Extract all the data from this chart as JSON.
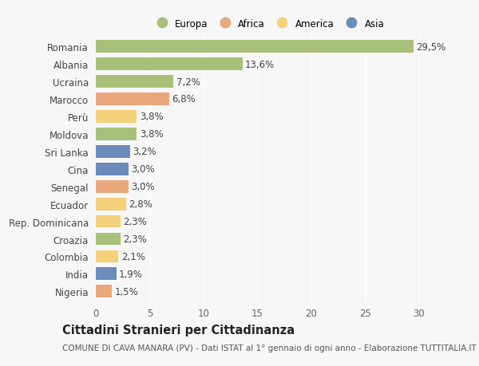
{
  "countries": [
    "Romania",
    "Albania",
    "Ucraina",
    "Marocco",
    "Perù",
    "Moldova",
    "Sri Lanka",
    "Cina",
    "Senegal",
    "Ecuador",
    "Rep. Dominicana",
    "Croazia",
    "Colombia",
    "India",
    "Nigeria"
  ],
  "values": [
    29.5,
    13.6,
    7.2,
    6.8,
    3.8,
    3.8,
    3.2,
    3.0,
    3.0,
    2.8,
    2.3,
    2.3,
    2.1,
    1.9,
    1.5
  ],
  "labels": [
    "29,5%",
    "13,6%",
    "7,2%",
    "6,8%",
    "3,8%",
    "3,8%",
    "3,2%",
    "3,0%",
    "3,0%",
    "2,8%",
    "2,3%",
    "2,3%",
    "2,1%",
    "1,9%",
    "1,5%"
  ],
  "continents": [
    "Europa",
    "Europa",
    "Europa",
    "Africa",
    "America",
    "Europa",
    "Asia",
    "Asia",
    "Africa",
    "America",
    "America",
    "Europa",
    "America",
    "Asia",
    "Africa"
  ],
  "colors": {
    "Europa": "#a8c07a",
    "Africa": "#e8a87c",
    "America": "#f5d07a",
    "Asia": "#6b8cba"
  },
  "legend_order": [
    "Europa",
    "Africa",
    "America",
    "Asia"
  ],
  "xlim": [
    0,
    32
  ],
  "xticks": [
    0,
    5,
    10,
    15,
    20,
    25,
    30
  ],
  "title": "Cittadini Stranieri per Cittadinanza",
  "subtitle": "COMUNE DI CAVA MANARA (PV) - Dati ISTAT al 1° gennaio di ogni anno - Elaborazione TUTTITALIA.IT",
  "bg_color": "#f7f7f7",
  "grid_color": "#ffffff",
  "bar_height": 0.72,
  "label_fontsize": 8.5,
  "tick_fontsize": 8.5,
  "title_fontsize": 10.5,
  "subtitle_fontsize": 7.5
}
